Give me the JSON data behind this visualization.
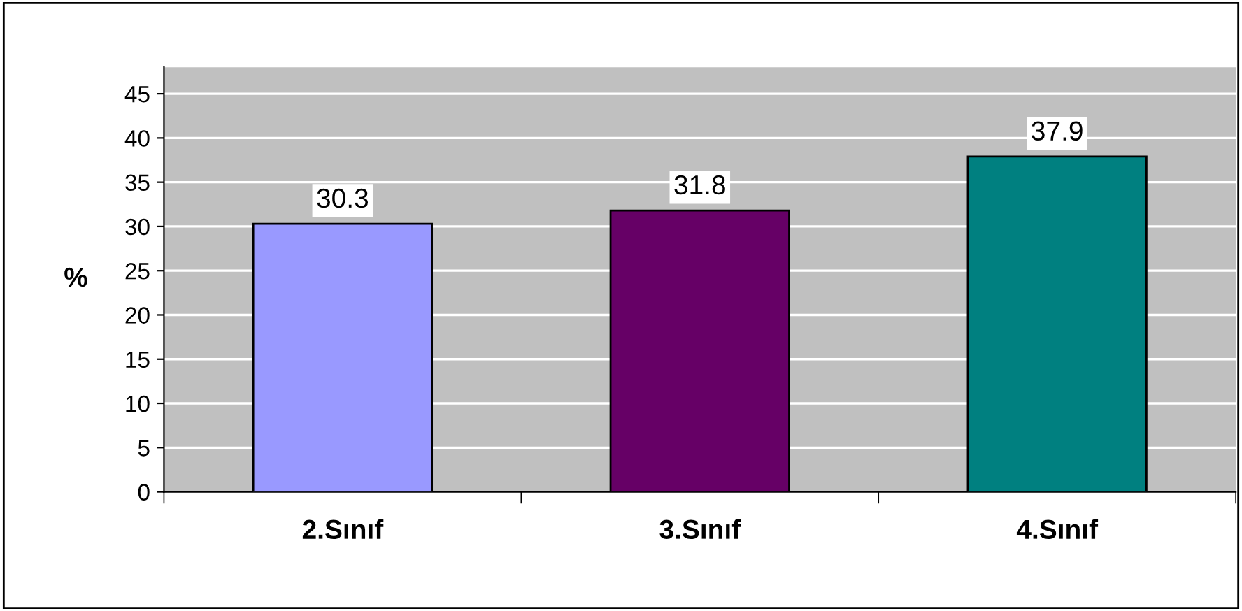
{
  "chart_data": {
    "type": "bar",
    "ylabel": "%",
    "categories": [
      "2.Sınıf",
      "3.Sınıf",
      "4.Sınıf"
    ],
    "values": [
      30.3,
      31.8,
      37.9
    ],
    "colors": [
      "#9999ff",
      "#660066",
      "#008080"
    ],
    "ylim": [
      0,
      48
    ],
    "yticks": [
      0,
      5,
      10,
      15,
      20,
      25,
      30,
      35,
      40,
      45
    ],
    "grid": "y",
    "data_labels": true
  }
}
